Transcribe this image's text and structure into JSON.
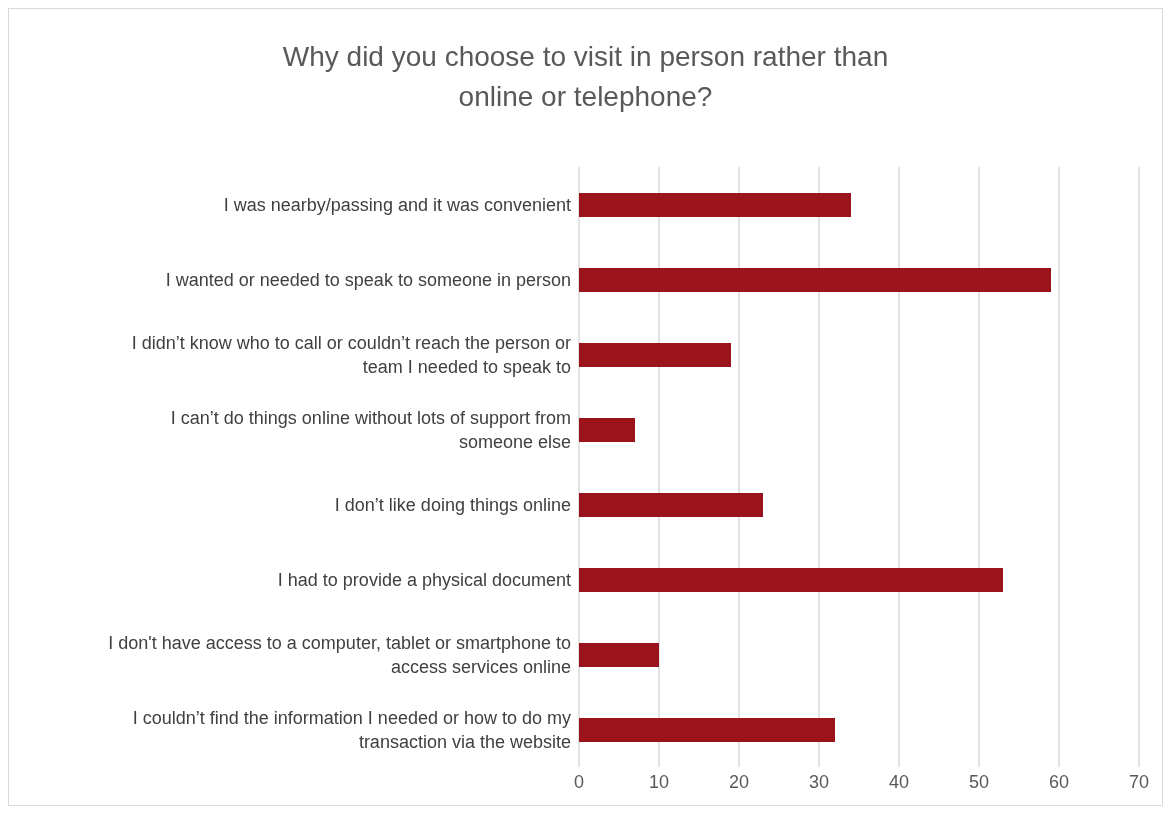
{
  "chart_data": {
    "type": "bar",
    "orientation": "horizontal",
    "title": "Why did you choose to visit in person rather than online or telephone?",
    "categories": [
      "I was nearby/passing and it was convenient",
      "I wanted or needed to speak to someone in person",
      "I didn’t know who to call or couldn’t reach the person or team I needed to speak to",
      "I can’t do things online without lots of support from someone else",
      "I don’t like doing things online",
      "I had to provide a physical document",
      "I don't have access to a computer, tablet or smartphone to access services online",
      "I couldn’t find the information I needed or how to do my transaction via the website"
    ],
    "values": [
      34,
      59,
      19,
      7,
      23,
      53,
      10,
      32
    ],
    "color": "#9b141c",
    "xlim": [
      0,
      70
    ],
    "xticks": [
      0,
      10,
      20,
      30,
      40,
      50,
      60,
      70
    ],
    "grid": "x",
    "legend": false
  }
}
